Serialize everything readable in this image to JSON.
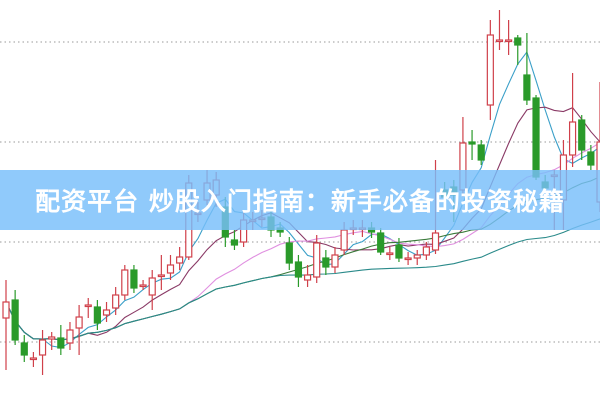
{
  "banner": {
    "title": "配资平台 炒股入门指南：新手必备的投资秘籍"
  },
  "chart_data": {
    "type": "candlestick",
    "ylim": [
      0.42,
      4.42
    ],
    "grid": {
      "horizontal": true,
      "style": "dotted",
      "levels": [
        1,
        2,
        3,
        4
      ]
    },
    "up_color": "#d0404a",
    "down_color": "#2a9a2a",
    "ohlc": [
      [
        1.24,
        1.62,
        0.72,
        1.4
      ],
      [
        1.42,
        1.52,
        0.97,
        1.02
      ],
      [
        0.99,
        1.07,
        0.8,
        0.87
      ],
      [
        0.84,
        0.9,
        0.75,
        0.84
      ],
      [
        0.87,
        1.12,
        0.67,
        1.02
      ],
      [
        1.03,
        1.1,
        0.92,
        1.05
      ],
      [
        1.04,
        1.17,
        0.87,
        0.94
      ],
      [
        0.99,
        1.2,
        0.92,
        1.12
      ],
      [
        1.14,
        1.37,
        0.87,
        1.25
      ],
      [
        1.37,
        1.44,
        1.24,
        1.37
      ],
      [
        1.35,
        1.42,
        1.12,
        1.19
      ],
      [
        1.27,
        1.4,
        1.2,
        1.32
      ],
      [
        1.34,
        1.55,
        1.27,
        1.47
      ],
      [
        1.47,
        1.77,
        1.42,
        1.72
      ],
      [
        1.72,
        1.77,
        1.49,
        1.54
      ],
      [
        1.57,
        1.62,
        1.52,
        1.57
      ],
      [
        1.47,
        1.72,
        1.32,
        1.64
      ],
      [
        1.66,
        1.87,
        1.52,
        1.67
      ],
      [
        1.69,
        1.87,
        1.62,
        1.77
      ],
      [
        1.79,
        1.95,
        1.72,
        1.85
      ],
      [
        1.85,
        2.67,
        1.82,
        2.59
      ],
      [
        2.29,
        2.4,
        2.2,
        2.29
      ],
      [
        2.42,
        2.72,
        2.37,
        2.59
      ],
      [
        2.47,
        2.7,
        2.35,
        2.62
      ],
      [
        2.35,
        2.45,
        1.95,
        2.05
      ],
      [
        2.02,
        2.12,
        1.92,
        1.97
      ],
      [
        2.0,
        2.32,
        1.95,
        2.22
      ],
      [
        2.22,
        2.3,
        2.12,
        2.22
      ],
      [
        2.23,
        2.32,
        2.15,
        2.24
      ],
      [
        2.25,
        2.32,
        2.05,
        2.12
      ],
      [
        2.14,
        2.2,
        2.05,
        2.1
      ],
      [
        1.99,
        2.05,
        1.72,
        1.79
      ],
      [
        1.8,
        1.87,
        1.55,
        1.65
      ],
      [
        1.62,
        1.77,
        1.55,
        1.67
      ],
      [
        1.65,
        2.07,
        1.59,
        1.99
      ],
      [
        1.84,
        1.92,
        1.67,
        1.75
      ],
      [
        1.75,
        1.95,
        1.69,
        1.87
      ],
      [
        1.92,
        2.2,
        1.87,
        2.12
      ],
      [
        2.14,
        2.22,
        2.07,
        2.14
      ],
      [
        2.13,
        2.22,
        2.05,
        2.14
      ],
      [
        2.14,
        2.2,
        2.04,
        2.1
      ],
      [
        2.09,
        2.14,
        1.87,
        1.9
      ],
      [
        1.88,
        1.95,
        1.82,
        1.89
      ],
      [
        1.97,
        2.04,
        1.8,
        1.84
      ],
      [
        1.84,
        1.9,
        1.77,
        1.84
      ],
      [
        1.84,
        1.92,
        1.77,
        1.87
      ],
      [
        1.87,
        2.0,
        1.82,
        1.95
      ],
      [
        1.92,
        2.82,
        1.88,
        2.09
      ],
      [
        2.52,
        2.6,
        2.4,
        2.45
      ],
      [
        2.55,
        2.62,
        2.2,
        2.47
      ],
      [
        2.52,
        3.25,
        2.45,
        2.99
      ],
      [
        3.0,
        3.12,
        2.82,
        2.98
      ],
      [
        2.97,
        3.02,
        2.77,
        2.82
      ],
      [
        3.37,
        4.22,
        3.22,
        4.07
      ],
      [
        4.02,
        4.32,
        3.92,
        4.02
      ],
      [
        4.01,
        4.22,
        3.87,
        4.02
      ],
      [
        4.04,
        4.07,
        3.77,
        3.97
      ],
      [
        3.67,
        4.09,
        3.37,
        3.42
      ],
      [
        3.44,
        3.47,
        2.62,
        2.65
      ],
      [
        2.6,
        2.67,
        2.5,
        2.54
      ],
      [
        2.67,
        2.72,
        2.12,
        2.67
      ],
      [
        2.42,
        3.02,
        2.12,
        2.87
      ],
      [
        2.87,
        3.69,
        2.75,
        3.2
      ],
      [
        3.22,
        3.27,
        2.82,
        2.92
      ],
      [
        2.9,
        2.97,
        2.72,
        2.77
      ],
      [
        2.4,
        3.6,
        2.3,
        3.0
      ]
    ],
    "moving_averages": [
      {
        "window": 5,
        "color": "#3a9fc8"
      },
      {
        "window": 10,
        "color": "#8a3a66"
      },
      {
        "window": 20,
        "color": "#e090e0"
      },
      {
        "window": 30,
        "color": "#3a7a3a"
      },
      {
        "window": 60,
        "color": "#2a8a8a"
      }
    ]
  }
}
